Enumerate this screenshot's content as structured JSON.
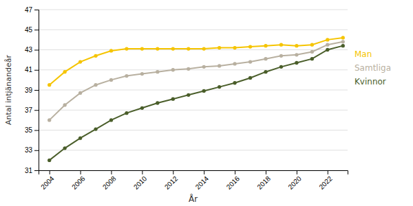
{
  "chart_data": {
    "type": "line",
    "x_label": "År",
    "y_label": "Antal intjänandeår",
    "x": [
      2004,
      2005,
      2006,
      2007,
      2008,
      2009,
      2010,
      2011,
      2012,
      2013,
      2014,
      2015,
      2016,
      2017,
      2018,
      2019,
      2020,
      2021,
      2022,
      2023
    ],
    "series": [
      {
        "name": "Man",
        "color": "#f5c400",
        "marker": "circle",
        "values": [
          39.5,
          40.8,
          41.8,
          42.4,
          42.9,
          43.1,
          43.1,
          43.1,
          43.1,
          43.1,
          43.1,
          43.2,
          43.2,
          43.3,
          43.4,
          43.5,
          43.4,
          43.5,
          44.0,
          44.2
        ]
      },
      {
        "name": "Samtliga",
        "color": "#b8b0a0",
        "marker": "circle",
        "values": [
          36.0,
          37.5,
          38.7,
          39.5,
          40.0,
          40.4,
          40.6,
          40.8,
          41.0,
          41.1,
          41.3,
          41.4,
          41.6,
          41.8,
          42.1,
          42.4,
          42.5,
          42.8,
          43.5,
          43.8
        ]
      },
      {
        "name": "Kvinnor",
        "color": "#4a5e2a",
        "marker": "circle",
        "values": [
          32.0,
          33.2,
          34.2,
          35.1,
          36.0,
          36.7,
          37.2,
          37.7,
          38.1,
          38.5,
          38.9,
          39.3,
          39.7,
          40.2,
          40.8,
          41.3,
          41.7,
          42.1,
          43.0,
          43.4
        ]
      }
    ],
    "xlim": [
      2003.3,
      2023.3
    ],
    "xticks": [
      2004,
      2006,
      2008,
      2010,
      2012,
      2014,
      2016,
      2018,
      2020,
      2022
    ],
    "ylim": [
      31,
      47
    ],
    "yticks": [
      31,
      33,
      35,
      37,
      39,
      41,
      43,
      45,
      47
    ],
    "grid": true,
    "legend": "right"
  }
}
